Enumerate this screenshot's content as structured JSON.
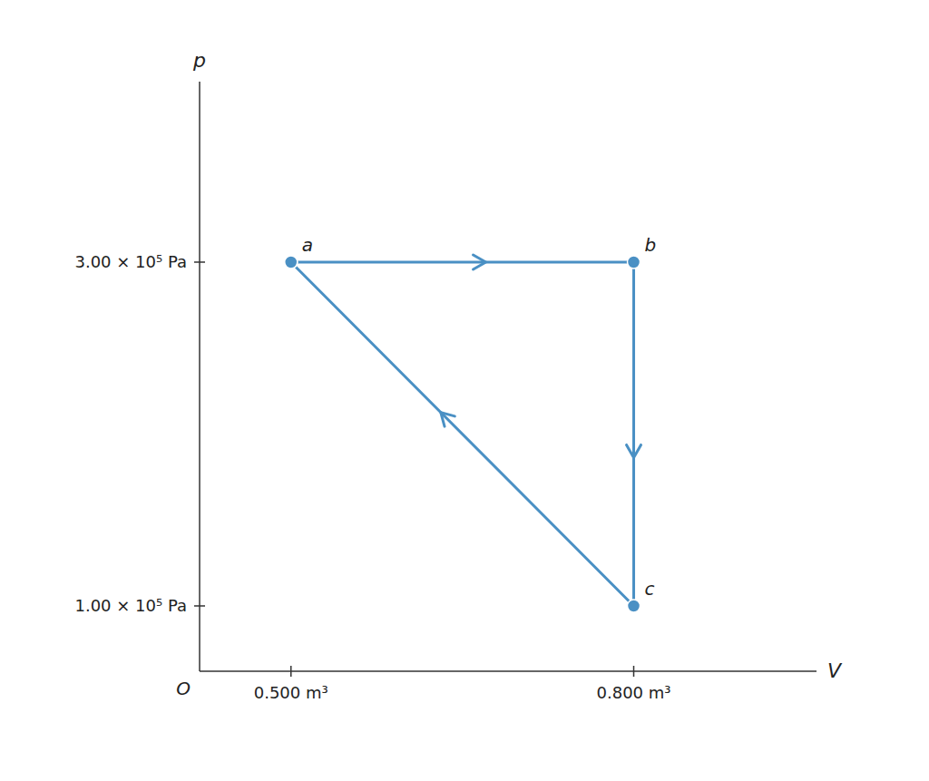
{
  "chart_data": {
    "type": "line",
    "x_label": "V",
    "y_label": "p",
    "x": [
      0.5,
      0.8,
      0.8,
      0.5
    ],
    "values": [
      3.0,
      3.0,
      1.0,
      3.0
    ],
    "color": "#4A90C4",
    "marker": "circle",
    "xlim": [
      0.42,
      0.96
    ],
    "ylim": [
      0.62,
      4.05
    ],
    "xticks": [
      {
        "value": 0.5,
        "label": "0.500 m³"
      },
      {
        "value": 0.8,
        "label": "0.800 m³"
      }
    ],
    "yticks": [
      {
        "value": 1.0,
        "label": "1.00 × 10⁵ Pa"
      },
      {
        "value": 3.0,
        "label": "3.00 × 10⁵ Pa"
      }
    ],
    "annotations": [
      {
        "text": "a",
        "x": 0.5,
        "y": 3.0
      },
      {
        "text": "b",
        "x": 0.8,
        "y": 3.0
      },
      {
        "text": "c",
        "x": 0.8,
        "y": 1.0
      },
      {
        "text": "O",
        "x": 0.42,
        "y": 0.62
      }
    ],
    "grid": false
  }
}
